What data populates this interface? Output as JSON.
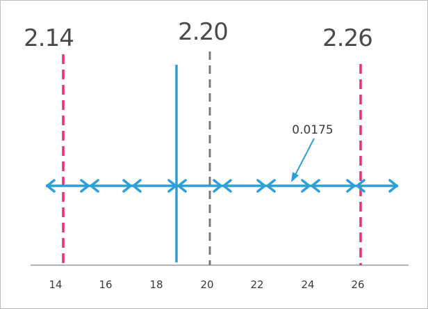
{
  "labels": {
    "left_value": "2.14",
    "center_value": "2.20",
    "right_value": "2.26",
    "interval_note": "0.0175"
  },
  "axis": {
    "ticks": [
      "14",
      "16",
      "18",
      "20",
      "22",
      "24",
      "26"
    ]
  },
  "colors": {
    "bound_line": "#e8336b",
    "center_line": "#7a7a7a",
    "measure_line": "#2b9fd8",
    "arrows": "#2b9fd8",
    "axis": "#9a9a9a"
  }
}
